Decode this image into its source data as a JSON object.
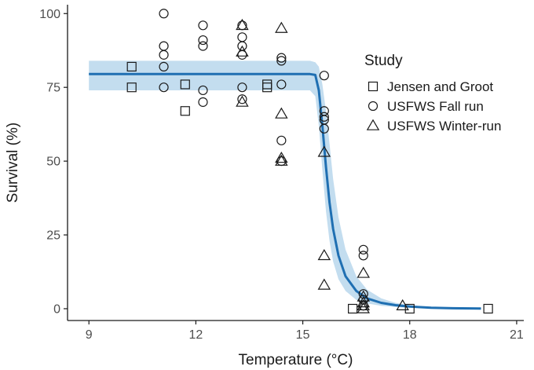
{
  "chart_data": {
    "type": "scatter",
    "title": "",
    "xlabel": "Temperature (°C)",
    "ylabel": "Survival (%)",
    "xlim": [
      8.4,
      21.2
    ],
    "ylim": [
      -4,
      103
    ],
    "x_ticks": [
      9,
      12,
      15,
      18,
      21
    ],
    "y_ticks": [
      0,
      25,
      50,
      75,
      100
    ],
    "grid": false,
    "legend": {
      "title": "Study",
      "placement": "right",
      "entries": [
        {
          "name": "Jensen and Groot",
          "shape": "square"
        },
        {
          "name": "USFWS Fall run",
          "shape": "circle"
        },
        {
          "name": "USFWS Winter-run",
          "shape": "triangle"
        }
      ]
    },
    "fit": {
      "color": "#1f6fb2",
      "band_color": "#b9d7ec",
      "x": [
        9.0,
        10.0,
        11.0,
        12.0,
        13.0,
        14.0,
        14.8,
        15.2,
        15.35,
        15.45,
        15.55,
        15.65,
        15.75,
        15.85,
        16.0,
        16.2,
        16.5,
        16.8,
        17.2,
        17.6,
        18.0,
        18.6,
        19.2,
        20.0
      ],
      "y": [
        79.5,
        79.5,
        79.5,
        79.5,
        79.5,
        79.5,
        79.5,
        79.5,
        79.2,
        74.0,
        62.0,
        48.0,
        36.0,
        27.0,
        18.0,
        11.0,
        6.0,
        3.5,
        2.0,
        1.2,
        0.7,
        0.3,
        0.15,
        0.05
      ],
      "upper": [
        84.0,
        84.0,
        84.0,
        84.0,
        84.0,
        84.0,
        84.0,
        84.0,
        83.5,
        82.0,
        76.0,
        67.0,
        56.0,
        44.0,
        31.0,
        20.0,
        11.0,
        6.5,
        3.5,
        2.0,
        1.2,
        0.5,
        0.25,
        0.1
      ],
      "lower": [
        74.0,
        74.0,
        74.0,
        74.0,
        74.0,
        74.0,
        74.0,
        74.0,
        72.0,
        62.0,
        47.0,
        33.0,
        23.0,
        16.0,
        10.0,
        6.0,
        3.0,
        1.8,
        1.0,
        0.6,
        0.3,
        0.1,
        0.05,
        0.0
      ]
    },
    "series": [
      {
        "name": "Jensen and Groot",
        "shape": "square",
        "points": [
          {
            "x": 10.2,
            "y": 82
          },
          {
            "x": 10.2,
            "y": 75
          },
          {
            "x": 11.7,
            "y": 76
          },
          {
            "x": 11.7,
            "y": 67
          },
          {
            "x": 14.0,
            "y": 76
          },
          {
            "x": 14.0,
            "y": 75
          },
          {
            "x": 16.4,
            "y": 0
          },
          {
            "x": 18.0,
            "y": 0
          },
          {
            "x": 20.2,
            "y": 0
          }
        ]
      },
      {
        "name": "USFWS Fall run",
        "shape": "circle",
        "points": [
          {
            "x": 11.1,
            "y": 100
          },
          {
            "x": 11.1,
            "y": 89
          },
          {
            "x": 11.1,
            "y": 86
          },
          {
            "x": 11.1,
            "y": 82
          },
          {
            "x": 11.1,
            "y": 75
          },
          {
            "x": 12.2,
            "y": 96
          },
          {
            "x": 12.2,
            "y": 91
          },
          {
            "x": 12.2,
            "y": 89
          },
          {
            "x": 12.2,
            "y": 74
          },
          {
            "x": 12.2,
            "y": 70
          },
          {
            "x": 13.3,
            "y": 96
          },
          {
            "x": 13.3,
            "y": 92
          },
          {
            "x": 13.3,
            "y": 89
          },
          {
            "x": 13.3,
            "y": 86
          },
          {
            "x": 13.3,
            "y": 75
          },
          {
            "x": 13.3,
            "y": 71
          },
          {
            "x": 14.4,
            "y": 85
          },
          {
            "x": 14.4,
            "y": 84
          },
          {
            "x": 14.4,
            "y": 76
          },
          {
            "x": 14.4,
            "y": 57
          },
          {
            "x": 14.4,
            "y": 50
          },
          {
            "x": 15.6,
            "y": 79
          },
          {
            "x": 15.6,
            "y": 67
          },
          {
            "x": 15.6,
            "y": 65
          },
          {
            "x": 15.6,
            "y": 64
          },
          {
            "x": 15.6,
            "y": 61
          },
          {
            "x": 16.7,
            "y": 20
          },
          {
            "x": 16.7,
            "y": 18
          },
          {
            "x": 16.7,
            "y": 5
          },
          {
            "x": 16.7,
            "y": 3
          },
          {
            "x": 16.7,
            "y": 1
          }
        ]
      },
      {
        "name": "USFWS Winter-run",
        "shape": "triangle",
        "points": [
          {
            "x": 13.3,
            "y": 96
          },
          {
            "x": 13.3,
            "y": 87
          },
          {
            "x": 13.3,
            "y": 70
          },
          {
            "x": 14.4,
            "y": 95
          },
          {
            "x": 14.4,
            "y": 66
          },
          {
            "x": 14.4,
            "y": 51
          },
          {
            "x": 14.4,
            "y": 50
          },
          {
            "x": 15.6,
            "y": 53
          },
          {
            "x": 15.6,
            "y": 18
          },
          {
            "x": 15.6,
            "y": 8
          },
          {
            "x": 16.7,
            "y": 12
          },
          {
            "x": 16.7,
            "y": 4
          },
          {
            "x": 16.7,
            "y": 2
          },
          {
            "x": 16.7,
            "y": 1
          },
          {
            "x": 16.7,
            "y": 0
          },
          {
            "x": 17.8,
            "y": 1
          }
        ]
      }
    ]
  }
}
